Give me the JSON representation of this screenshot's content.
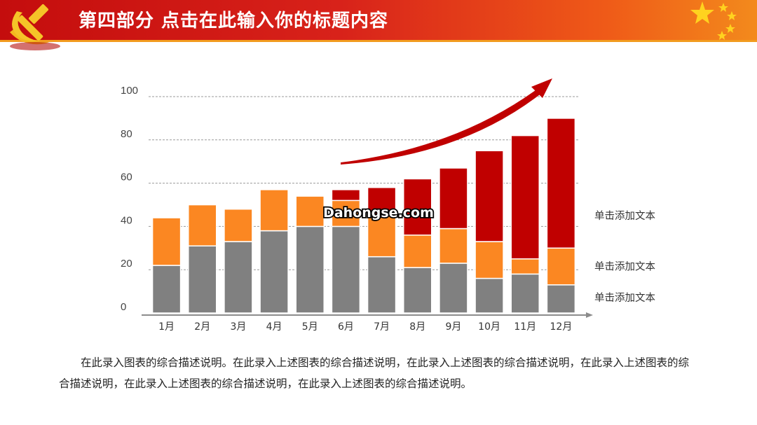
{
  "header": {
    "title": "第四部分  点击在此输入你的标题内容"
  },
  "colors": {
    "gray": "#808080",
    "orange": "#fb8722",
    "red": "#c00000",
    "arrow": "#c00000"
  },
  "chart_data": {
    "type": "bar",
    "stacked": true,
    "categories": [
      "1月",
      "2月",
      "3月",
      "4月",
      "5月",
      "6月",
      "7月",
      "8月",
      "9月",
      "10月",
      "11月",
      "12月"
    ],
    "series": [
      {
        "name": "单击添加文本",
        "color": "#808080",
        "values": [
          22,
          31,
          33,
          38,
          40,
          40,
          26,
          21,
          23,
          16,
          18,
          13
        ]
      },
      {
        "name": "单击添加文本",
        "color": "#fb8722",
        "values": [
          22,
          19,
          15,
          19,
          14,
          12,
          19,
          15,
          16,
          17,
          7,
          17
        ]
      },
      {
        "name": "单击添加文本",
        "color": "#c00000",
        "values": [
          0,
          0,
          0,
          0,
          0,
          5,
          13,
          26,
          28,
          42,
          57,
          60
        ]
      }
    ],
    "yticks": [
      0,
      20,
      40,
      60,
      80,
      100
    ],
    "ylim": [
      0,
      100
    ],
    "grid": true,
    "legend": "right",
    "watermark": "Dahongse.com"
  },
  "description": "在此录入图表的综合描述说明。在此录入上述图表的综合描述说明，在此录入上述图表的综合描述说明，在此录入上述图表的综合描述说明，在此录入上述图表的综合描述说明，在此录入上述图表的综合描述说明。"
}
